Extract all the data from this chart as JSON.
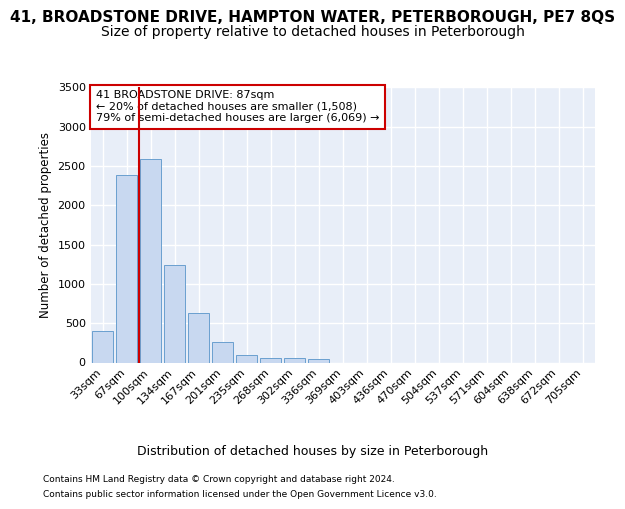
{
  "title_line1": "41, BROADSTONE DRIVE, HAMPTON WATER, PETERBOROUGH, PE7 8QS",
  "title_line2": "Size of property relative to detached houses in Peterborough",
  "xlabel": "Distribution of detached houses by size in Peterborough",
  "ylabel": "Number of detached properties",
  "categories": [
    "33sqm",
    "67sqm",
    "100sqm",
    "134sqm",
    "167sqm",
    "201sqm",
    "235sqm",
    "268sqm",
    "302sqm",
    "336sqm",
    "369sqm",
    "403sqm",
    "436sqm",
    "470sqm",
    "504sqm",
    "537sqm",
    "571sqm",
    "604sqm",
    "638sqm",
    "672sqm",
    "705sqm"
  ],
  "values": [
    400,
    2380,
    2590,
    1240,
    630,
    260,
    100,
    60,
    55,
    50,
    0,
    0,
    0,
    0,
    0,
    0,
    0,
    0,
    0,
    0,
    0
  ],
  "bar_color": "#c8d8f0",
  "bar_edge_color": "#6a9fcf",
  "vline_color": "#cc0000",
  "vline_x": 1.5,
  "annotation_text": "41 BROADSTONE DRIVE: 87sqm\n← 20% of detached houses are smaller (1,508)\n79% of semi-detached houses are larger (6,069) →",
  "annotation_box_color": "#ffffff",
  "annotation_border_color": "#cc0000",
  "ylim": [
    0,
    3500
  ],
  "yticks": [
    0,
    500,
    1000,
    1500,
    2000,
    2500,
    3000,
    3500
  ],
  "footer_line1": "Contains HM Land Registry data © Crown copyright and database right 2024.",
  "footer_line2": "Contains public sector information licensed under the Open Government Licence v3.0.",
  "background_color": "#ffffff",
  "plot_bg_color": "#e8eef8",
  "grid_color": "#ffffff",
  "title_fontsize": 11,
  "subtitle_fontsize": 10
}
